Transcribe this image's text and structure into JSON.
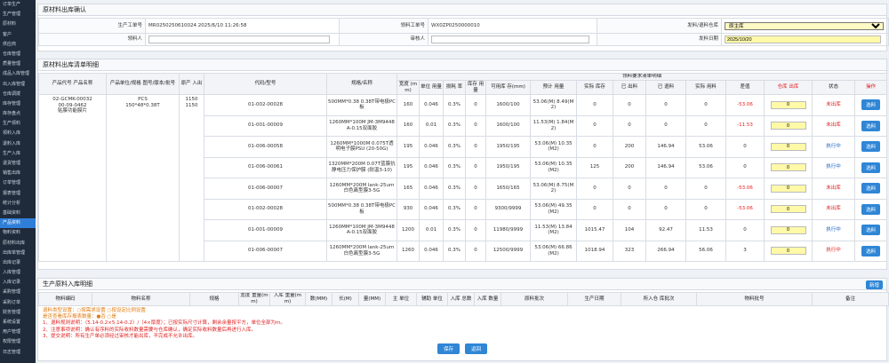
{
  "sidebar": {
    "items": [
      "订单生产",
      "生产管理",
      "原材料",
      "客户",
      "供应商",
      "仓库管理",
      "质量管理",
      "成品入库管理",
      "出入库管理",
      "仓库调拨",
      "库存管理",
      "库存盘点",
      "生产领料",
      "领料入库",
      "退料入库",
      "生产入库",
      "退货管理",
      "销售出库",
      "订单管理",
      "报表管理",
      "统计分析",
      "基础资料",
      "产品资料",
      "物料资料",
      "原材料出库",
      "出库单管理",
      "出库记录",
      "入库管理",
      "入库记录",
      "采购管理",
      "采购订单",
      "财务管理",
      "系统设置",
      "用户管理",
      "权限管理",
      "日志管理"
    ],
    "active": 22
  },
  "form": {
    "title": "原材料出库确认",
    "fields": [
      {
        "label": "生产工单号",
        "value": "MR0250250610024 2025/6/10 11:26:58"
      },
      {
        "label": "领料工单号",
        "value": "WX0ZP0250000010"
      },
      {
        "label": "发料/退料仓库",
        "value": "原主库"
      },
      {
        "label": "领料人",
        "value": ""
      },
      {
        "label": "审核人",
        "value": ""
      },
      {
        "label": "发料日期",
        "value": "2025/10/20"
      }
    ]
  },
  "detail": {
    "title": "原材料出库清单明细",
    "group_header": "领料要求清单明细",
    "columns": [
      "产品代号 产品名称",
      "产品单位/规格 图号/版本/批号",
      "原产 入出",
      "代码/型号",
      "规格/名称",
      "宽度 (mm)",
      "单位 用量",
      "损耗 率",
      "库存 用量",
      "可用库 存(mm)",
      "预计 用量",
      "实际 库存",
      "已 出料",
      "已 退料",
      "实际 用料",
      "差值",
      "仓库 出库",
      "状态",
      "操作"
    ],
    "product": [
      "02-GCMK-00032",
      "00-09-0462",
      "贴膜功能膜片"
    ],
    "unit": [
      "PCS",
      "150*48*0.38T"
    ],
    "io": [
      "1150",
      "1150"
    ],
    "rows": [
      [
        "01-002-00028",
        "500MM*0.38 0.38T带电极PC板",
        "160",
        "0.046",
        "0.3%",
        "0",
        "1600/100",
        "53.06(M) 8.49(M2)",
        "0",
        "0",
        "0",
        "0",
        "-53.06",
        "0",
        "未出库",
        "选料"
      ],
      [
        "01-001-00009",
        "1260MM*100M JM-3M9448A-0.15双面胶",
        "160",
        "0.01",
        "0.3%",
        "0",
        "1600/100",
        "11.53(M) 1.84(M2)",
        "0",
        "0",
        "0",
        "0",
        "-11.53",
        "0",
        "未出库",
        "选料"
      ],
      [
        "01-006-00058",
        "1260MM*1000M 0.075T透明电子膜PSU (20-50G)",
        "195",
        "0.046",
        "0.3%",
        "0",
        "1950/195",
        "53.06(M) 10.35(M2)",
        "0",
        "200",
        "146.94",
        "53.06",
        "0",
        "0",
        "执行中",
        "选料"
      ],
      [
        "01-006-00061",
        "1320MM*200M 0.07T蓝膜抗静电压力保护膜 (耐温3-10)",
        "195",
        "0.046",
        "0.3%",
        "0",
        "1950/195",
        "53.06(M) 10.35(M2)",
        "125",
        "200",
        "146.94",
        "53.06",
        "0",
        "0",
        "执行中",
        "选料"
      ],
      [
        "01-006-00007",
        "1260MM*200M lank-25um白色离型膜3-5G",
        "165",
        "0.046",
        "0.3%",
        "0",
        "1650/165",
        "53.06(M) 8.75(M2)",
        "0",
        "0",
        "0",
        "0",
        "-53.06",
        "0",
        "未出库",
        "选料"
      ],
      [
        "01-002-00028",
        "500MM*0.38 0.38T带电极PC板",
        "930",
        "0.046",
        "0.3%",
        "0",
        "9300/9999",
        "53.06(M) 49.35(M2)",
        "0",
        "0",
        "0",
        "0",
        "-53.06",
        "0",
        "未出库",
        "选料"
      ],
      [
        "01-001-00009",
        "1260MM*100M JM-3M9448A-0.15双面胶",
        "1200",
        "0.01",
        "0.3%",
        "0",
        "11980/9999",
        "11.53(M) 13.84(M2)",
        "1015.47",
        "104",
        "92.47",
        "11.53",
        "0",
        "0",
        "执行中",
        "选料"
      ],
      [
        "01-006-00007",
        "1260MM*200M lank-25um白色离型膜3-5G",
        "1260",
        "0.046",
        "0.3%",
        "0",
        "12500/9999",
        "53.06(M) 66.86(M2)",
        "1018.94",
        "323",
        "266.94",
        "56.06",
        "3",
        "0",
        "执行中",
        "选料"
      ]
    ]
  },
  "entry": {
    "title": "生产原料入库明细",
    "add_button": "新增",
    "columns": [
      "物料编码",
      "物料名称",
      "规格",
      "宽度 重量(mm)",
      "入库 重量(mm)",
      "数(MM)",
      "长(M)",
      "量(MM)",
      "主 单位",
      "辅助 单位",
      "入库 总数",
      "入库 数量",
      "原料批次",
      "生产日期",
      "所入仓 库批次",
      "物料批号",
      "备注"
    ],
    "notes": [
      "退料类型设置：○按需求设置 ○按设定比例设置",
      "是否查看库存报表数量：●否 ○是",
      "1、退料规则说明：（5.14-0.2×5.14-0.2）/（4×厚度）；已按实际尺寸计算，剩余余量按平方，单位全部为m。",
      "2、注意事项说明：确认有序料的实际收料数量需要与仓库确认，确定实际收料数量后再进行入库。",
      "3、提交说明：所有生产单必须经过审核才能出库，不完成不允许出库。"
    ],
    "buttons": [
      "保存",
      "返回"
    ]
  }
}
